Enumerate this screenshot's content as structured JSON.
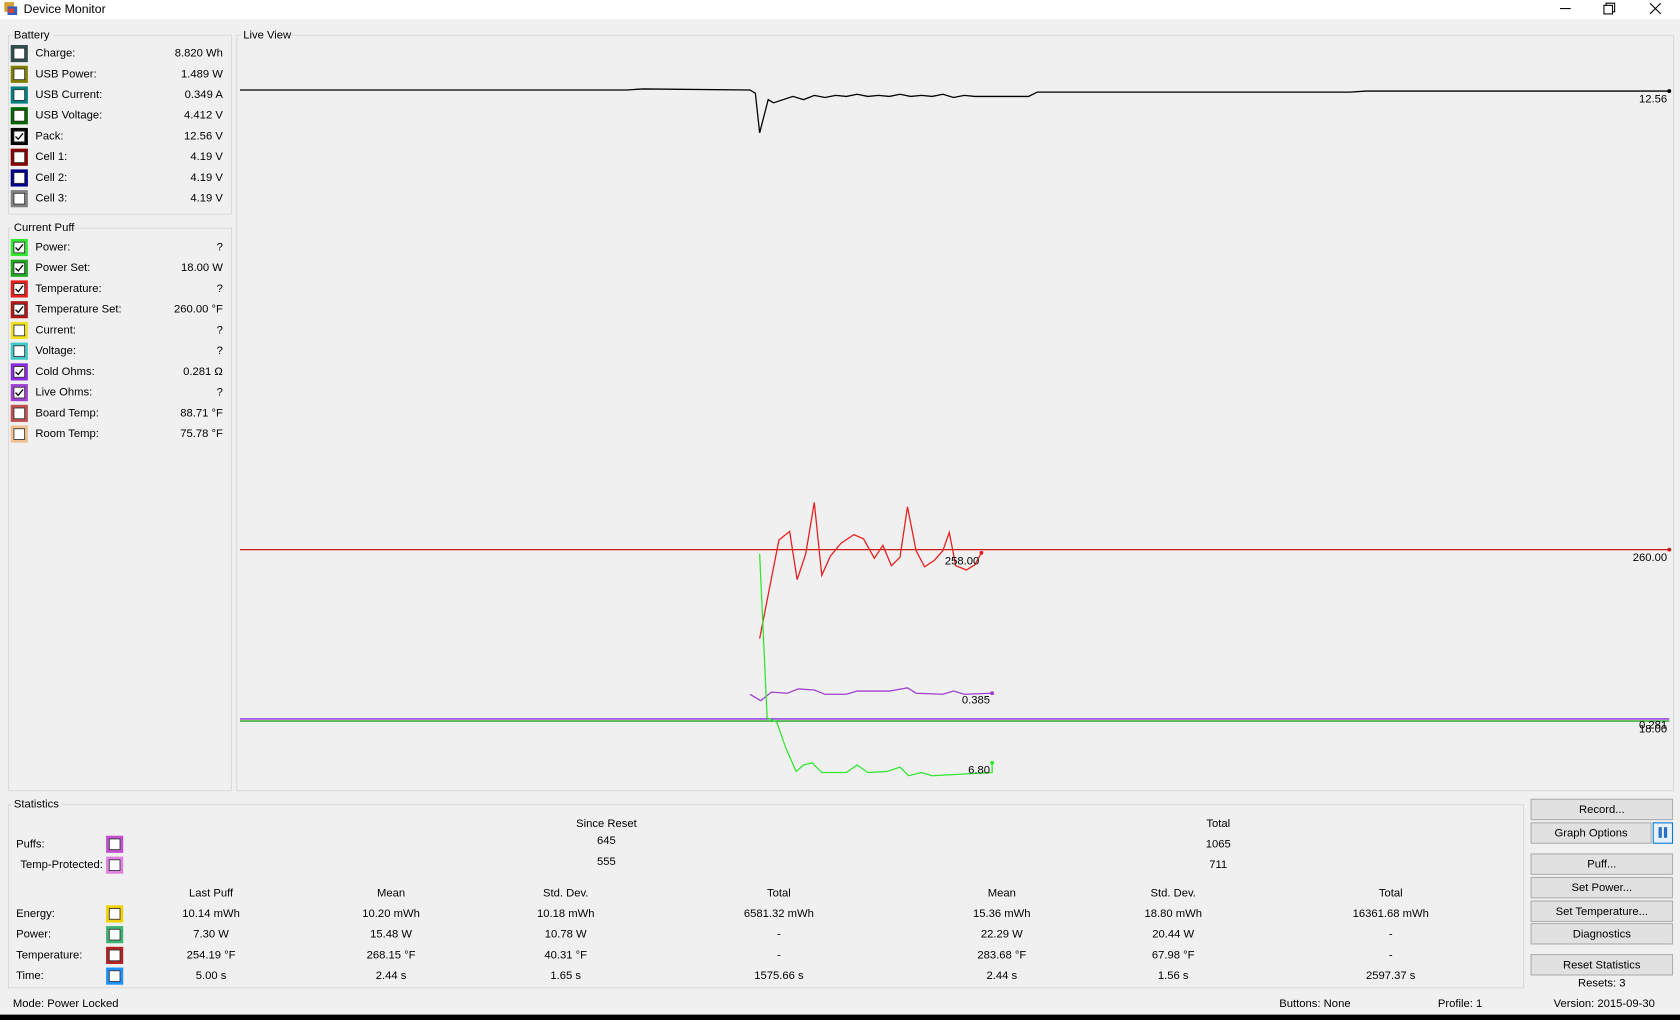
{
  "window": {
    "title": "Device Monitor"
  },
  "battery": {
    "title": "Battery",
    "items": [
      {
        "label": "Charge:",
        "value": "8.820 Wh",
        "color": "#2f4f4f",
        "checked": false
      },
      {
        "label": "USB Power:",
        "value": "1.489 W",
        "color": "#808000",
        "checked": false
      },
      {
        "label": "USB Current:",
        "value": "0.349 A",
        "color": "#008080",
        "checked": false
      },
      {
        "label": "USB Voltage:",
        "value": "4.412 V",
        "color": "#006400",
        "checked": false
      },
      {
        "label": "Pack:",
        "value": "12.56 V",
        "color": "#000000",
        "checked": true
      },
      {
        "label": "Cell 1:",
        "value": "4.19 V",
        "color": "#8b0000",
        "checked": false
      },
      {
        "label": "Cell 2:",
        "value": "4.19 V",
        "color": "#00008b",
        "checked": false
      },
      {
        "label": "Cell 3:",
        "value": "4.19 V",
        "color": "#808080",
        "checked": false
      }
    ]
  },
  "current_puff": {
    "title": "Current Puff",
    "items": [
      {
        "label": "Power:",
        "value": "?",
        "color": "#32e632",
        "checked": true
      },
      {
        "label": "Power Set:",
        "value": "18.00 W",
        "color": "#1fa81f",
        "checked": true
      },
      {
        "label": "Temperature:",
        "value": "?",
        "color": "#e62020",
        "checked": true
      },
      {
        "label": "Temperature Set:",
        "value": "260.00 °F",
        "color": "#b01818",
        "checked": true
      },
      {
        "label": "Current:",
        "value": "?",
        "color": "#f0e020",
        "checked": false
      },
      {
        "label": "Voltage:",
        "value": "?",
        "color": "#40c8c8",
        "checked": false
      },
      {
        "label": "Cold Ohms:",
        "value": "0.281 Ω",
        "color": "#8a2be2",
        "checked": true
      },
      {
        "label": "Live Ohms:",
        "value": "?",
        "color": "#a040d0",
        "checked": true
      },
      {
        "label": "Board Temp:",
        "value": "88.71 °F",
        "color": "#c05050",
        "checked": false
      },
      {
        "label": "Room Temp:",
        "value": "75.78 °F",
        "color": "#f0c090",
        "checked": false
      }
    ]
  },
  "live_view": {
    "title": "Live View",
    "labels": [
      "12.56",
      "260.00",
      "258.00",
      "0.385",
      "18.00",
      "0.281",
      "6.80"
    ]
  },
  "statistics": {
    "title": "Statistics",
    "since_reset": "Since Reset",
    "total": "Total",
    "counts": [
      {
        "label": "Puffs:",
        "color": "#c050d0",
        "since_reset": "645",
        "total": "1065"
      },
      {
        "label": "Temp-Protected:",
        "color": "#e080e0",
        "since_reset": "555",
        "total": "711"
      }
    ],
    "columns": [
      "Last Puff",
      "Mean",
      "Std. Dev.",
      "Total",
      "Mean",
      "Std. Dev.",
      "Total"
    ],
    "rows": [
      {
        "label": "Energy:",
        "color": "#f0d000",
        "cells": [
          "10.14 mWh",
          "10.20 mWh",
          "10.18 mWh",
          "6581.32 mWh",
          "15.36 mWh",
          "18.80 mWh",
          "16361.68 mWh"
        ]
      },
      {
        "label": "Power:",
        "color": "#3cb371",
        "cells": [
          "7.30 W",
          "15.48 W",
          "10.78 W",
          "-",
          "22.29 W",
          "20.44 W",
          "-"
        ]
      },
      {
        "label": "Temperature:",
        "color": "#b22222",
        "cells": [
          "254.19 °F",
          "268.15 °F",
          "40.31 °F",
          "-",
          "283.68 °F",
          "67.98 °F",
          "-"
        ]
      },
      {
        "label": "Time:",
        "color": "#1e90ff",
        "cells": [
          "5.00 s",
          "2.44 s",
          "1.65 s",
          "1575.66 s",
          "2.44 s",
          "1.56 s",
          "2597.37 s"
        ]
      }
    ]
  },
  "buttons": [
    "Record...",
    "Graph Options",
    "Puff...",
    "Set Power...",
    "Set Temperature...",
    "Diagnostics",
    "Reset Statistics"
  ],
  "resets": "Resets: 3",
  "status": {
    "mode": "Mode: Power Locked",
    "buttons": "Buttons: None",
    "profile": "Profile: 1",
    "version": "Version: 2015-09-30"
  }
}
